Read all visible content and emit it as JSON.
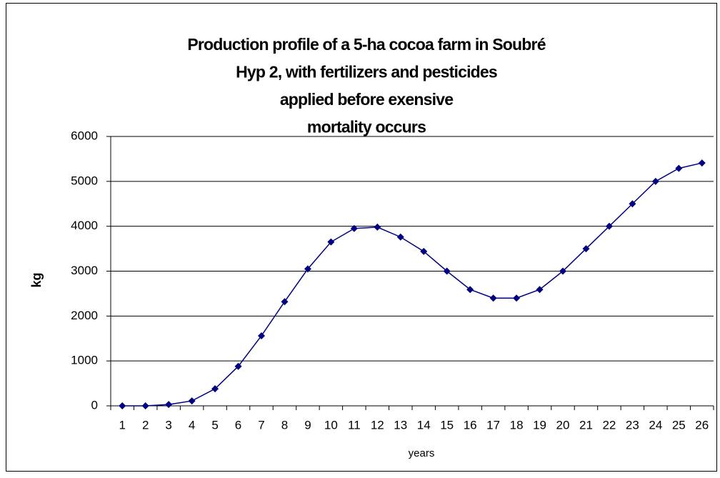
{
  "chart_data": {
    "type": "line",
    "title": [
      "Production profile of a 5-ha cocoa farm in Soubré",
      "Hyp 2, with fertilizers and pesticides",
      "applied before exensive",
      "mortality occurs"
    ],
    "x_label": "years",
    "y_label": "kg",
    "categories": [
      "1",
      "2",
      "3",
      "4",
      "5",
      "6",
      "7",
      "8",
      "9",
      "10",
      "11",
      "12",
      "13",
      "14",
      "15",
      "16",
      "17",
      "18",
      "19",
      "20",
      "21",
      "22",
      "23",
      "24",
      "25",
      "26"
    ],
    "series": [
      {
        "color": "#000080",
        "values": [
          0,
          0,
          30,
          110,
          380,
          880,
          1560,
          2320,
          3050,
          3650,
          3950,
          3980,
          3760,
          3440,
          3000,
          2590,
          2400,
          2400,
          2590,
          3000,
          3500,
          4000,
          4500,
          5000,
          5290,
          5410
        ]
      }
    ],
    "ylim": [
      0,
      6000
    ],
    "yticks": [
      0,
      1000,
      2000,
      3000,
      4000,
      5000,
      6000
    ],
    "grid": true
  }
}
